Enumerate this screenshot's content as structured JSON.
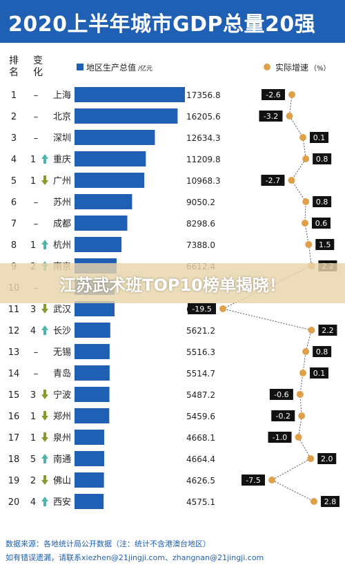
{
  "title": "2020上半年城市GDP总量20强",
  "header": {
    "rank": "排名",
    "change": "变化"
  },
  "overlay_text": "江苏武术班TOP10榜单揭晓！",
  "footer": {
    "line1": "数据来源：各地统计局公开数据（注：统计不含港澳台地区）",
    "line2": "如有错误遗漏，请联系xiezhen@21jingji.com、zhangnan@21jingji.com"
  },
  "colors": {
    "bar": "#1f5fb4",
    "dot": "#e0a04a",
    "title_bg": "#1f5fb4"
  },
  "chart_data": {
    "type": "bar",
    "legend": [
      {
        "name": "地区生产总值",
        "unit": "/亿元"
      },
      {
        "name": "实际增速",
        "unit": "（%）"
      }
    ],
    "ranks": [
      "1",
      "2",
      "3",
      "4",
      "5",
      "6",
      "7",
      "8",
      "9",
      "10",
      "11",
      "12",
      "13",
      "14",
      "15",
      "16",
      "17",
      "18",
      "19",
      "20"
    ],
    "change_arrows": [
      "",
      "",
      "",
      "up",
      "down",
      "",
      "",
      "up",
      "up",
      "",
      "down",
      "up",
      "",
      "",
      "down",
      "down",
      "down",
      "up",
      "down",
      "up"
    ],
    "change_numbers": [
      "–",
      "–",
      "–",
      "1",
      "1",
      "–",
      "–",
      "1",
      "2",
      "–",
      "3",
      "4",
      "–",
      "–",
      "3",
      "1",
      "1",
      "5",
      "2",
      "4"
    ],
    "categories": [
      "上海",
      "北京",
      "深圳",
      "重庆",
      "广州",
      "苏州",
      "成都",
      "杭州",
      "南京",
      "",
      "武汉",
      "长沙",
      "无锡",
      "青岛",
      "宁波",
      "郑州",
      "泉州",
      "南通",
      "佛山",
      "西安"
    ],
    "series": [
      {
        "name": "地区生产总值",
        "values": [
          17356.8,
          16205.6,
          12634.3,
          11209.8,
          10968.3,
          9050.2,
          8298.6,
          7388.0,
          6612.4,
          6300,
          6295.3,
          5621.2,
          5516.3,
          5514.7,
          5487.2,
          5459.6,
          4668.1,
          4664.4,
          4626.5,
          4575.1
        ],
        "labels": [
          "17356.8",
          "16205.6",
          "12634.3",
          "11209.8",
          "10968.3",
          "9050.2",
          "8298.6",
          "7388.0",
          "6612.4",
          "",
          "6295.3",
          "5621.2",
          "5516.3",
          "5514.7",
          "5487.2",
          "5459.6",
          "4668.1",
          "4664.4",
          "4626.5",
          "4575.1"
        ]
      },
      {
        "name": "实际增速",
        "values": [
          -2.6,
          -3.2,
          0.1,
          0.8,
          -2.7,
          0.8,
          0.6,
          1.5,
          2.2,
          null,
          -19.5,
          2.2,
          0.8,
          0.1,
          -0.6,
          -0.2,
          -1.0,
          2.0,
          -7.5,
          2.8
        ],
        "labels": [
          "-2.6",
          "-3.2",
          "0.1",
          "0.8",
          "-2.7",
          "0.8",
          "0.6",
          "1.5",
          "2.2",
          "",
          "-19.5",
          "2.2",
          "0.8",
          "0.1",
          "-0.6",
          "-0.2",
          "-1.0",
          "2.0",
          "-7.5",
          "2.8"
        ]
      }
    ]
  }
}
